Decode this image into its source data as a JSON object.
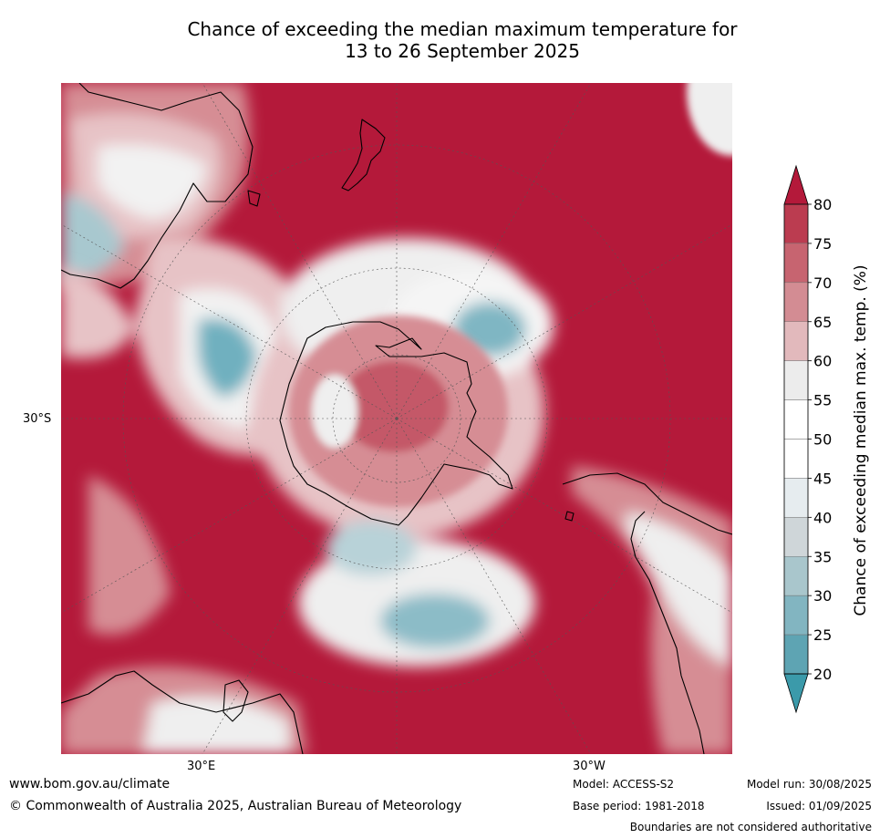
{
  "title": {
    "line1": "Chance of exceeding the median maximum temperature for",
    "line2": "13 to 26 September 2025"
  },
  "map": {
    "lat_label": "30°S",
    "lon_labels": [
      "30°E",
      "30°W"
    ],
    "colors": {
      "dominant": "#b4193a",
      "high": "#c45868",
      "mid_high": "#d68d94",
      "near_neutral": "#ededed",
      "low": "#a8c8cf",
      "very_low": "#5fa8b8",
      "coast": "#000000",
      "grid": "#555555"
    }
  },
  "colorbar": {
    "label": "Chance of exceeding median max. temp. (%)",
    "ticks": [
      "80",
      "75",
      "70",
      "65",
      "60",
      "55",
      "50",
      "45",
      "40",
      "35",
      "30",
      "25",
      "20"
    ],
    "colors": [
      "#b4193a",
      "#bb3c50",
      "#c76470",
      "#d38c93",
      "#e2b9bc",
      "#ececec",
      "#ffffff",
      "#ffffff",
      "#e6ecef",
      "#cfd6d9",
      "#a9c6cc",
      "#82b5c1",
      "#5ea4b3",
      "#3b9aaa"
    ]
  },
  "footer": {
    "website": "www.bom.gov.au/climate",
    "copyright": "© Commonwealth of Australia 2025, Australian Bureau of Meteorology",
    "model": "Model: ACCESS-S2",
    "base_period": "Base period: 1981-2018",
    "model_run": "Model run: 30/08/2025",
    "issued": "Issued: 01/09/2025",
    "disclaimer": "Boundaries are not considered authoritative"
  }
}
